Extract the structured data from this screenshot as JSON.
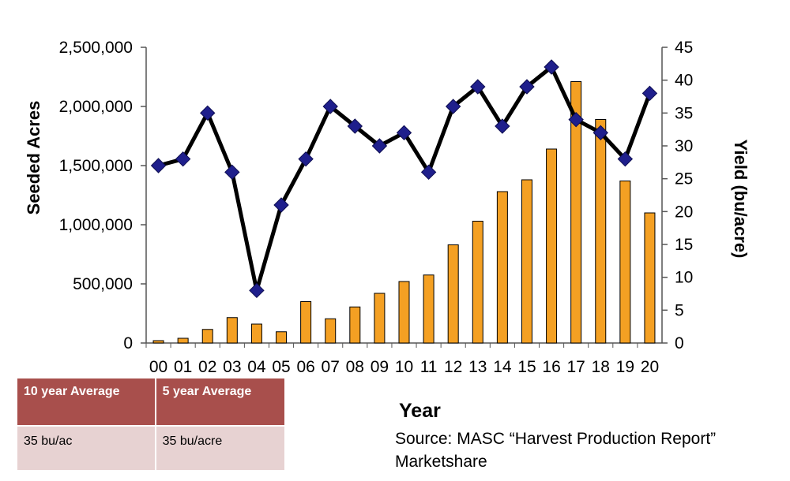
{
  "chart_data": {
    "type": "bar+line",
    "categories": [
      "00",
      "01",
      "02",
      "03",
      "04",
      "05",
      "06",
      "07",
      "08",
      "09",
      "10",
      "11",
      "12",
      "13",
      "14",
      "15",
      "16",
      "17",
      "18",
      "19",
      "20"
    ],
    "series": [
      {
        "name": "Seeded Acres",
        "type": "bar",
        "axis": "left",
        "color": "#f4a023",
        "values": [
          20000,
          40000,
          115000,
          215000,
          160000,
          95000,
          350000,
          205000,
          305000,
          420000,
          520000,
          575000,
          830000,
          1030000,
          1280000,
          1380000,
          1640000,
          2210000,
          1890000,
          1370000,
          1100000
        ]
      },
      {
        "name": "Yield (bu/acre)",
        "type": "line",
        "axis": "right",
        "color": "#000000",
        "marker_color": "#1f1f8c",
        "values": [
          27,
          28,
          35,
          26,
          8,
          21,
          28,
          36,
          33,
          30,
          32,
          26,
          36,
          39,
          33,
          39,
          42,
          34,
          32,
          28,
          38
        ]
      }
    ],
    "ylabel_left": "Seeded Acres",
    "ylabel_right": "Yield (bu/acre)",
    "xlabel": "Year",
    "ylim_left": [
      0,
      2500000
    ],
    "ylim_right": [
      0,
      45
    ],
    "yticks_left": [
      "0",
      "500,000",
      "1,000,000",
      "1,500,000",
      "2,000,000",
      "2,500,000"
    ],
    "yticks_right": [
      "0",
      "5",
      "10",
      "15",
      "20",
      "25",
      "30",
      "35",
      "40",
      "45"
    ],
    "grid": false
  },
  "table": {
    "headers": [
      "10 year Average",
      "5 year Average"
    ],
    "values": [
      "35 bu/ac",
      "35 bu/acre"
    ]
  },
  "source_line1": "Source: MASC “Harvest Production Report”",
  "source_line2": "Marketshare"
}
